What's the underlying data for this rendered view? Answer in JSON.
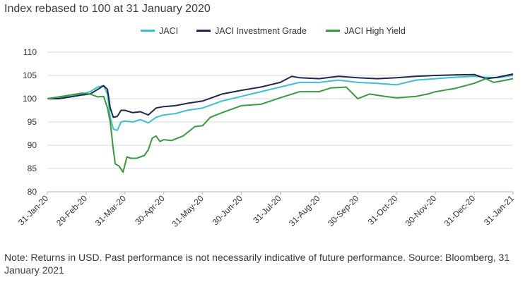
{
  "chart_data": {
    "type": "line",
    "title": "Index rebased to 100 at 31 January 2020",
    "xlabel": "",
    "ylabel": "",
    "ylim": [
      80,
      110
    ],
    "yticks": [
      80,
      85,
      90,
      95,
      100,
      105,
      110
    ],
    "xticks": [
      "31-Jan-20",
      "29-Feb-20",
      "31-Mar-20",
      "30-Apr-20",
      "31-May-20",
      "30-Jun-20",
      "31-Jul-20",
      "31-Aug-20",
      "30-Sep-20",
      "31-Oct-20",
      "30-Nov-20",
      "31-Dec-20",
      "31-Jan-21"
    ],
    "grid": "horizontal",
    "legend_position": "top-center",
    "series": [
      {
        "name": "JACI",
        "color": "#3bbfd2",
        "values": [
          [
            0,
            100
          ],
          [
            0.3,
            100.2
          ],
          [
            0.6,
            100.5
          ],
          [
            0.9,
            101
          ],
          [
            1.1,
            101.5
          ],
          [
            1.3,
            102.5
          ],
          [
            1.45,
            102.8
          ],
          [
            1.55,
            101
          ],
          [
            1.62,
            96
          ],
          [
            1.7,
            93.5
          ],
          [
            1.8,
            93.2
          ],
          [
            1.9,
            95
          ],
          [
            2.0,
            95.2
          ],
          [
            2.2,
            95
          ],
          [
            2.4,
            95.5
          ],
          [
            2.6,
            94.8
          ],
          [
            2.8,
            96
          ],
          [
            3.0,
            96.5
          ],
          [
            3.3,
            96.8
          ],
          [
            3.6,
            97.5
          ],
          [
            4.0,
            98
          ],
          [
            4.5,
            99.5
          ],
          [
            5.0,
            100.5
          ],
          [
            5.5,
            101.5
          ],
          [
            6.0,
            102.5
          ],
          [
            6.5,
            103.5
          ],
          [
            7.0,
            103.5
          ],
          [
            7.5,
            104
          ],
          [
            8.0,
            103.5
          ],
          [
            8.5,
            103.3
          ],
          [
            9.0,
            103
          ],
          [
            9.5,
            104
          ],
          [
            10.0,
            104.3
          ],
          [
            10.5,
            104.6
          ],
          [
            11.0,
            104.8
          ],
          [
            11.3,
            104.6
          ],
          [
            11.6,
            104.5
          ],
          [
            12.0,
            105
          ]
        ]
      },
      {
        "name": "JACI Investment Grade",
        "color": "#1b2a4a",
        "values": [
          [
            0,
            100
          ],
          [
            0.3,
            100
          ],
          [
            0.6,
            100.4
          ],
          [
            0.9,
            100.8
          ],
          [
            1.1,
            101
          ],
          [
            1.3,
            102
          ],
          [
            1.45,
            102.8
          ],
          [
            1.55,
            102
          ],
          [
            1.62,
            98
          ],
          [
            1.7,
            96
          ],
          [
            1.8,
            96.2
          ],
          [
            1.9,
            97.5
          ],
          [
            2.0,
            97.5
          ],
          [
            2.2,
            97
          ],
          [
            2.4,
            97.2
          ],
          [
            2.6,
            96.5
          ],
          [
            2.8,
            98
          ],
          [
            3.0,
            98.3
          ],
          [
            3.3,
            98.5
          ],
          [
            3.6,
            99
          ],
          [
            4.0,
            99.5
          ],
          [
            4.5,
            101
          ],
          [
            5.0,
            101.8
          ],
          [
            5.5,
            102.5
          ],
          [
            6.0,
            103.5
          ],
          [
            6.3,
            104.8
          ],
          [
            6.5,
            104.5
          ],
          [
            7.0,
            104.3
          ],
          [
            7.5,
            104.8
          ],
          [
            8.0,
            104.5
          ],
          [
            8.5,
            104.3
          ],
          [
            9.0,
            104.5
          ],
          [
            9.5,
            104.8
          ],
          [
            10.0,
            105
          ],
          [
            10.5,
            105.1
          ],
          [
            11.0,
            105.2
          ],
          [
            11.3,
            104.3
          ],
          [
            11.6,
            104.6
          ],
          [
            12.0,
            105.3
          ]
        ]
      },
      {
        "name": "JACI High Yield",
        "color": "#3a9a3e",
        "values": [
          [
            0,
            100
          ],
          [
            0.3,
            100.4
          ],
          [
            0.6,
            100.8
          ],
          [
            0.9,
            101.2
          ],
          [
            1.1,
            101
          ],
          [
            1.3,
            100.4
          ],
          [
            1.45,
            100.5
          ],
          [
            1.55,
            98
          ],
          [
            1.62,
            95
          ],
          [
            1.7,
            89
          ],
          [
            1.75,
            86
          ],
          [
            1.85,
            85.5
          ],
          [
            1.95,
            84.2
          ],
          [
            2.05,
            87.5
          ],
          [
            2.15,
            87.2
          ],
          [
            2.3,
            87.2
          ],
          [
            2.5,
            87.8
          ],
          [
            2.6,
            89
          ],
          [
            2.7,
            91.5
          ],
          [
            2.8,
            92
          ],
          [
            2.9,
            90.8
          ],
          [
            3.0,
            91.2
          ],
          [
            3.2,
            91
          ],
          [
            3.5,
            92
          ],
          [
            3.8,
            94
          ],
          [
            4.0,
            94.2
          ],
          [
            4.2,
            96
          ],
          [
            4.5,
            97
          ],
          [
            5.0,
            98.5
          ],
          [
            5.5,
            98.8
          ],
          [
            6.0,
            100.2
          ],
          [
            6.5,
            101.5
          ],
          [
            7.0,
            101.5
          ],
          [
            7.3,
            102.3
          ],
          [
            7.7,
            102.5
          ],
          [
            8.0,
            100
          ],
          [
            8.3,
            101
          ],
          [
            8.7,
            100.5
          ],
          [
            9.0,
            100.2
          ],
          [
            9.5,
            100.5
          ],
          [
            9.8,
            101
          ],
          [
            10.0,
            101.5
          ],
          [
            10.5,
            102.2
          ],
          [
            11.0,
            103.3
          ],
          [
            11.3,
            104.3
          ],
          [
            11.5,
            103.5
          ],
          [
            11.7,
            103.8
          ],
          [
            12.0,
            104.3
          ]
        ]
      }
    ]
  },
  "note": "Note: Returns in USD. Past performance is not necessarily indicative of future performance. Source: Bloomberg, 31 January 2021"
}
